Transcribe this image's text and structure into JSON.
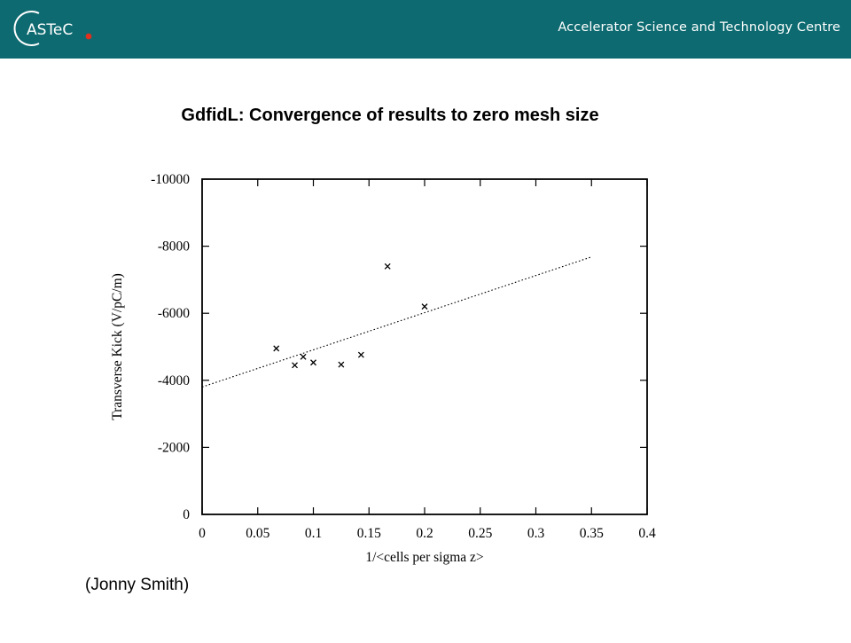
{
  "header": {
    "logo_text": "ASTeC",
    "org_name": "Accelerator Science and Technology Centre",
    "bar_color": "#0d6a70",
    "logo_dot_color": "#e0301e"
  },
  "slide": {
    "title": "GdfidL: Convergence of results to zero mesh size",
    "credit": "(Jonny Smith)"
  },
  "chart_data": {
    "type": "scatter",
    "title": "",
    "xlabel": "1/<cells per sigma z>",
    "ylabel": "Transverse Kick (V/pC/m)",
    "xlim": [
      0,
      0.4
    ],
    "ylim": [
      0,
      -10000
    ],
    "x_ticks": [
      "0",
      "0.05",
      "0.1",
      "0.15",
      "0.2",
      "0.25",
      "0.3",
      "0.35",
      "0.4"
    ],
    "y_ticks": [
      "0",
      "-2000",
      "-4000",
      "-6000",
      "-8000",
      "-10000"
    ],
    "grid": false,
    "marker": "x",
    "series": [
      {
        "points": [
          [
            0.0667,
            -4950
          ],
          [
            0.0833,
            -4450
          ],
          [
            0.0909,
            -4700
          ],
          [
            0.1,
            -4530
          ],
          [
            0.125,
            -4470
          ],
          [
            0.1429,
            -4760
          ],
          [
            0.1667,
            -7400
          ],
          [
            0.2,
            -6200
          ]
        ]
      }
    ],
    "fit_line": {
      "style": "dotted",
      "x": [
        0,
        0.35
      ],
      "y": [
        -3800,
        -7680
      ]
    }
  }
}
